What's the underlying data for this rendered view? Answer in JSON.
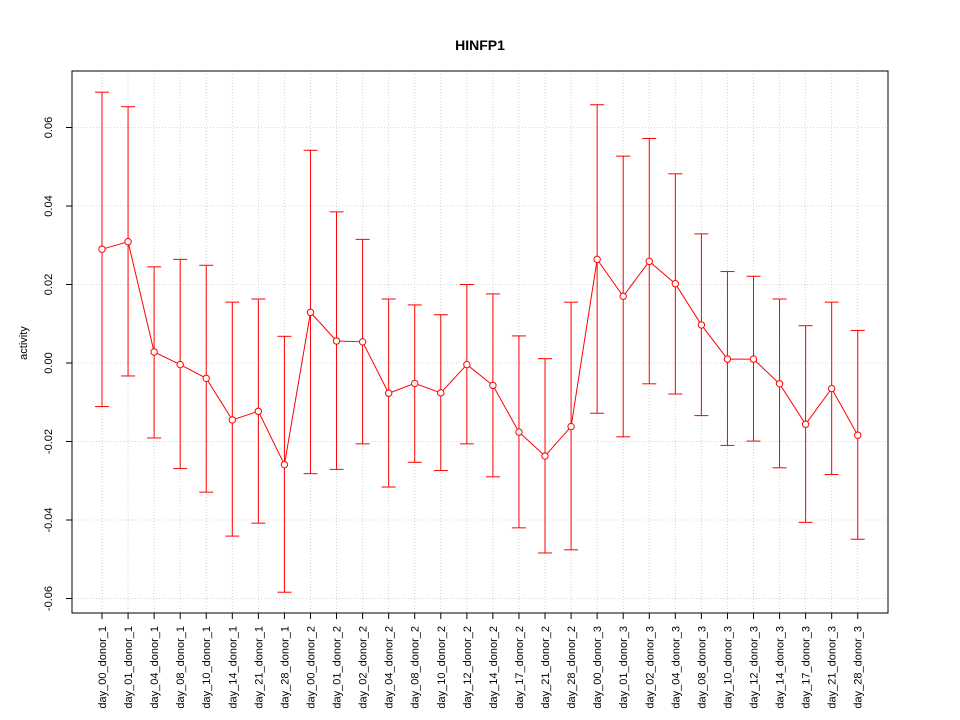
{
  "chart_data": {
    "type": "line",
    "title": "HINFP1",
    "xlabel": "",
    "ylabel": "activity",
    "ylim": [
      -0.063,
      0.074
    ],
    "yticks": [
      -0.06,
      -0.04,
      -0.02,
      0.0,
      0.02,
      0.04,
      0.06
    ],
    "ytick_labels": [
      "-0.06",
      "-0.04",
      "-0.02",
      "0.00",
      "0.02",
      "0.04",
      "0.06"
    ],
    "grid": true,
    "colors": {
      "series": "#ff0000",
      "grid": "#c8c8c8",
      "axis": "#000000"
    },
    "categories": [
      "day_00_donor_1",
      "day_01_donor_1",
      "day_04_donor_1",
      "day_08_donor_1",
      "day_10_donor_1",
      "day_14_donor_1",
      "day_21_donor_1",
      "day_28_donor_1",
      "day_00_donor_2",
      "day_01_donor_2",
      "day_02_donor_2",
      "day_04_donor_2",
      "day_08_donor_2",
      "day_10_donor_2",
      "day_12_donor_2",
      "day_14_donor_2",
      "day_17_donor_2",
      "day_21_donor_2",
      "day_28_donor_2",
      "day_00_donor_3",
      "day_01_donor_3",
      "day_02_donor_3",
      "day_04_donor_3",
      "day_08_donor_3",
      "day_10_donor_3",
      "day_12_donor_3",
      "day_14_donor_3",
      "day_17_donor_3",
      "day_21_donor_3",
      "day_28_donor_3"
    ],
    "series": [
      {
        "values": [
          0.029,
          0.0309,
          0.0028,
          -0.0004,
          -0.0039,
          -0.0145,
          -0.0123,
          -0.0259,
          0.0129,
          0.0056,
          0.0054,
          -0.0077,
          -0.0052,
          -0.0076,
          -0.0004,
          -0.0057,
          -0.0176,
          -0.0237,
          -0.0162,
          0.0264,
          0.017,
          0.0259,
          0.0202,
          0.0097,
          0.001,
          0.001,
          -0.0053,
          -0.0156,
          -0.0065,
          -0.0184
        ],
        "upper": [
          0.069,
          0.0653,
          0.0245,
          0.0264,
          0.0249,
          0.0155,
          0.0163,
          0.0068,
          0.0542,
          0.0385,
          0.0315,
          0.0163,
          0.0148,
          0.0123,
          0.02,
          0.0176,
          0.0069,
          0.0011,
          0.0155,
          0.0658,
          0.0527,
          0.0572,
          0.0482,
          0.0329,
          0.0233,
          0.0221,
          0.0163,
          0.0095,
          0.0155,
          0.0083
        ],
        "lower": [
          -0.0111,
          -0.0033,
          -0.0191,
          -0.0269,
          -0.0329,
          -0.0441,
          -0.0408,
          -0.0584,
          -0.0282,
          -0.0271,
          -0.0206,
          -0.0316,
          -0.0253,
          -0.0274,
          -0.0206,
          -0.029,
          -0.042,
          -0.0484,
          -0.0476,
          -0.0128,
          -0.0188,
          -0.0053,
          -0.0079,
          -0.0134,
          -0.021,
          -0.0199,
          -0.0267,
          -0.0406,
          -0.0284,
          -0.0449
        ]
      }
    ]
  }
}
